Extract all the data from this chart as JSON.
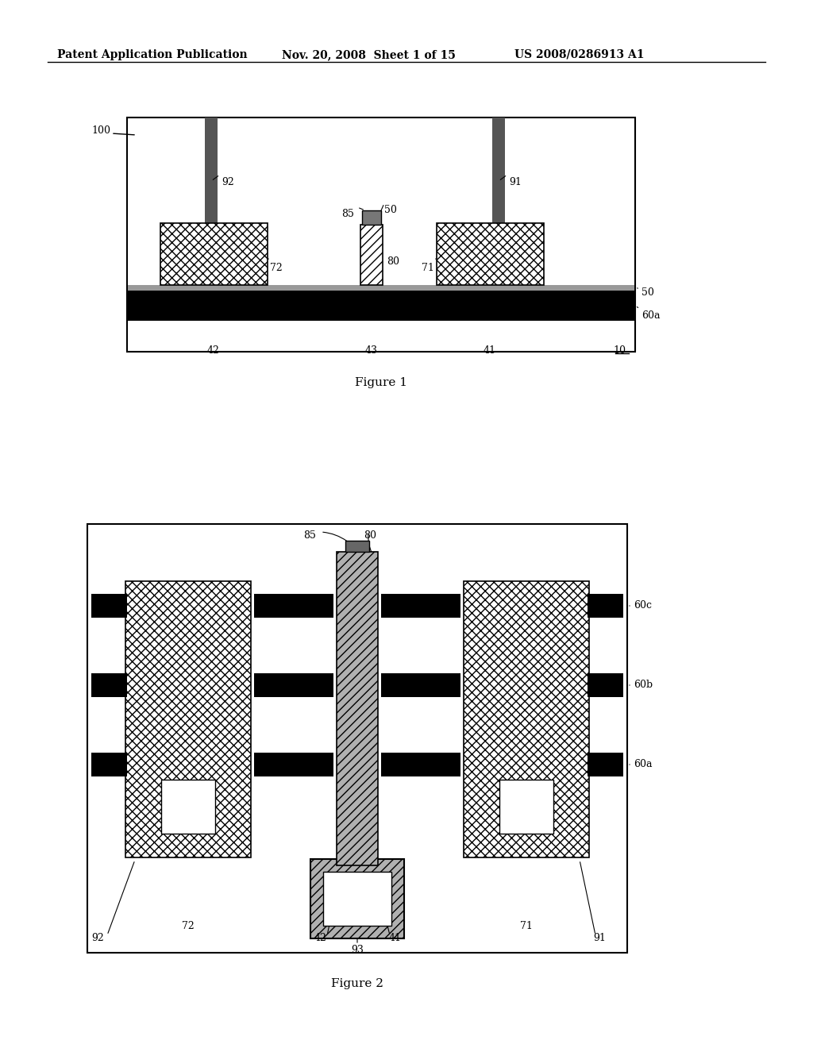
{
  "bg_color": "#ffffff",
  "header_text_left": "Patent Application Publication",
  "header_text_mid": "Nov. 20, 2008  Sheet 1 of 15",
  "header_text_right": "US 2008/0286913 A1",
  "fig1_caption": "Figure 1",
  "fig2_caption": "Figure 2"
}
